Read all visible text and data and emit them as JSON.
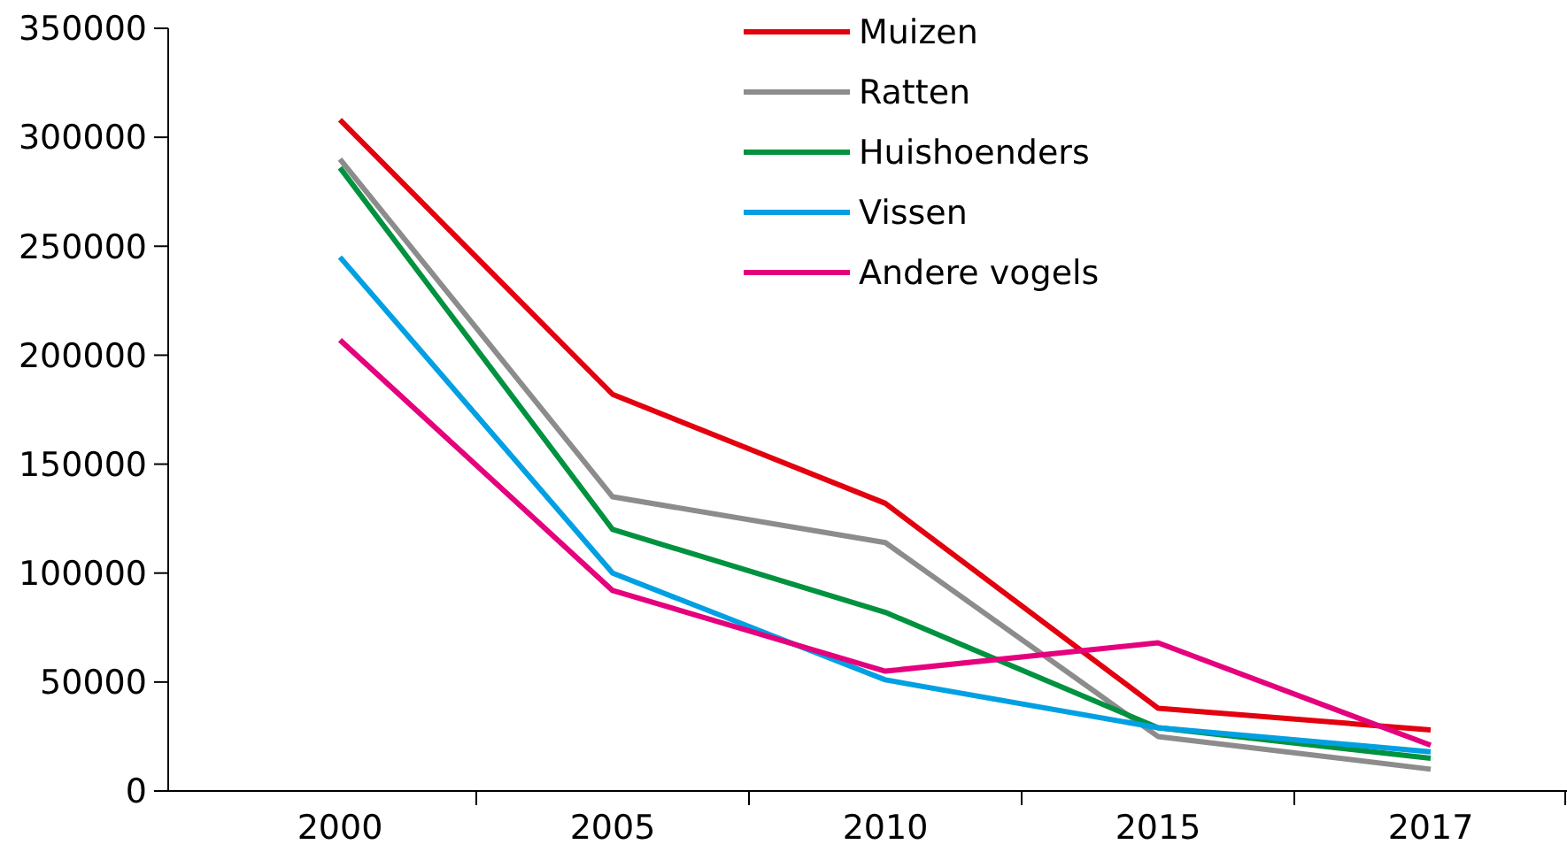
{
  "chart_data": {
    "type": "line",
    "categories": [
      "2000",
      "2005",
      "2010",
      "2015",
      "2017"
    ],
    "series": [
      {
        "name": "Muizen",
        "color": "#e3000f",
        "values": [
          308000,
          182000,
          132000,
          38000,
          28000
        ]
      },
      {
        "name": "Ratten",
        "color": "#8c8c8c",
        "values": [
          290000,
          135000,
          114000,
          25000,
          10000
        ]
      },
      {
        "name": "Huishoenders",
        "color": "#00923f",
        "values": [
          286000,
          120000,
          82000,
          29000,
          15000
        ]
      },
      {
        "name": "Vissen",
        "color": "#00a0e3",
        "values": [
          245000,
          100000,
          51000,
          29000,
          18000
        ]
      },
      {
        "name": "Andere vogels",
        "color": "#e5007d",
        "values": [
          207000,
          92000,
          55000,
          68000,
          21000
        ]
      }
    ],
    "ylim": [
      0,
      350000
    ],
    "yticks": [
      0,
      50000,
      100000,
      150000,
      200000,
      250000,
      300000,
      350000
    ],
    "grid": false,
    "legend": "top",
    "marker": "none",
    "line_style": "solid"
  }
}
